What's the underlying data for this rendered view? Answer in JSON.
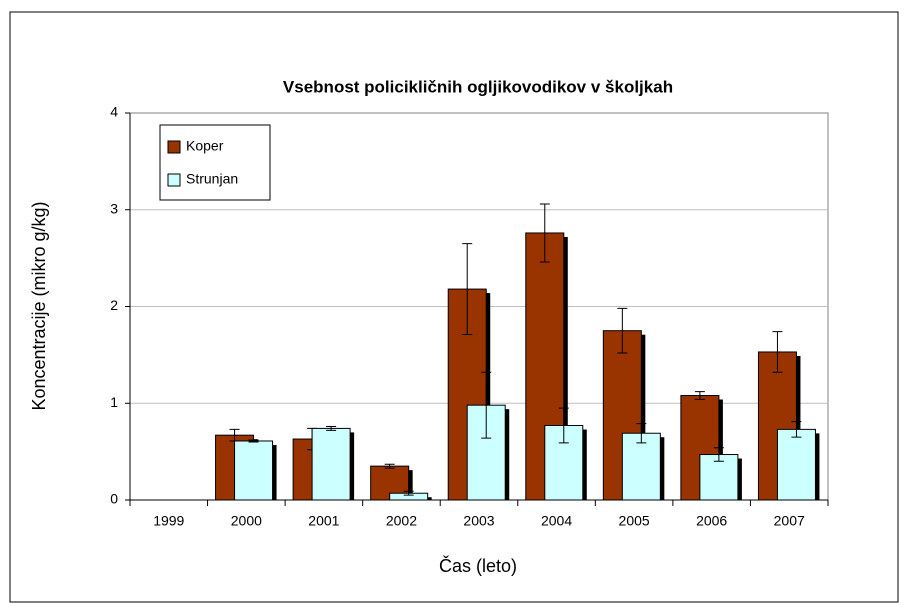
{
  "chart_data": {
    "type": "bar",
    "title": "Vsebnost policikličnih ogljikovodikov v školjkah",
    "x_label": "Čas (leto)",
    "y_label": "Koncentracije (mikro g/kg)",
    "categories": [
      "1999",
      "2000",
      "2001",
      "2002",
      "2003",
      "2004",
      "2005",
      "2006",
      "2007"
    ],
    "series": [
      {
        "name": "Koper",
        "color": "#993300",
        "values": [
          null,
          0.67,
          0.63,
          0.35,
          2.18,
          2.76,
          1.75,
          1.08,
          1.53
        ],
        "errors": [
          null,
          0.06,
          0.11,
          0.02,
          0.47,
          0.3,
          0.23,
          0.04,
          0.21
        ]
      },
      {
        "name": "Strunjan",
        "color": "#ccffff",
        "values": [
          null,
          0.61,
          0.74,
          0.07,
          0.98,
          0.77,
          0.69,
          0.47,
          0.73
        ],
        "errors": [
          null,
          0.01,
          0.02,
          0.02,
          0.34,
          0.18,
          0.1,
          0.07,
          0.08
        ]
      }
    ],
    "ylim": [
      0,
      4
    ],
    "yticks": [
      0,
      1,
      2,
      3,
      4
    ],
    "grid": true,
    "legend": "top-left"
  }
}
